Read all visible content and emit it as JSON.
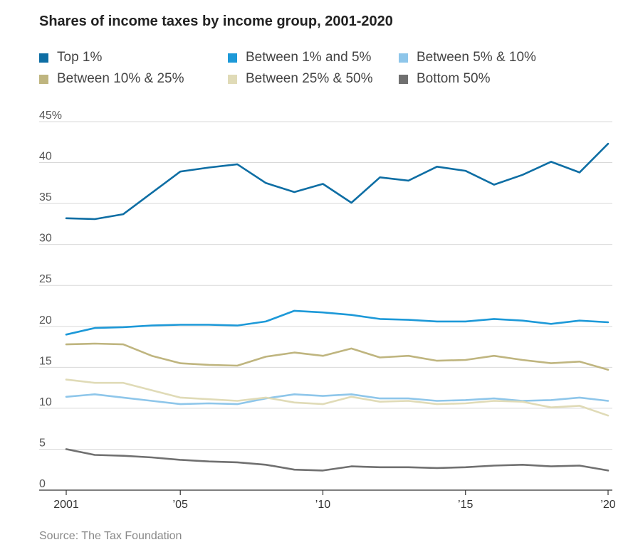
{
  "title": "Shares of income taxes by income group, 2001-2020",
  "source": "Source: The Tax Foundation",
  "chart_data": {
    "type": "line",
    "title": "Shares of income taxes by income group, 2001-2020",
    "xlabel": "",
    "ylabel": "",
    "x": [
      2001,
      2002,
      2003,
      2004,
      2005,
      2006,
      2007,
      2008,
      2009,
      2010,
      2011,
      2012,
      2013,
      2014,
      2015,
      2016,
      2017,
      2018,
      2019,
      2020
    ],
    "xlim": [
      2001,
      2020
    ],
    "ylim": [
      0,
      45
    ],
    "y_ticks": [
      0,
      5,
      10,
      15,
      20,
      25,
      30,
      35,
      40,
      45
    ],
    "y_tick_labels": [
      "0",
      "5",
      "10",
      "15",
      "20",
      "25",
      "30",
      "35",
      "40",
      "45%"
    ],
    "x_ticks": [
      2001,
      2005,
      2010,
      2015,
      2020
    ],
    "x_tick_labels": [
      "2001",
      "’05",
      "’10",
      "’15",
      "’20"
    ],
    "grid": true,
    "legend_position": "top",
    "series": [
      {
        "name": "Top 1%",
        "color": "#0e6ea4",
        "values": [
          33.2,
          33.1,
          33.7,
          36.3,
          38.9,
          39.4,
          39.8,
          37.5,
          36.4,
          37.4,
          35.1,
          38.2,
          37.8,
          39.5,
          39.0,
          37.3,
          38.5,
          40.1,
          38.8,
          42.3
        ]
      },
      {
        "name": "Between 1% and 5%",
        "color": "#1d99d8",
        "values": [
          19.0,
          19.8,
          19.9,
          20.1,
          20.2,
          20.2,
          20.1,
          20.6,
          21.9,
          21.7,
          21.4,
          20.9,
          20.8,
          20.6,
          20.6,
          20.9,
          20.7,
          20.3,
          20.7,
          20.5
        ]
      },
      {
        "name": "Between 5% & 10%",
        "color": "#8ec6ea",
        "values": [
          11.4,
          11.7,
          11.3,
          10.9,
          10.5,
          10.6,
          10.5,
          11.2,
          11.7,
          11.5,
          11.7,
          11.2,
          11.2,
          10.9,
          11.0,
          11.2,
          10.9,
          11.0,
          11.3,
          10.9
        ]
      },
      {
        "name": "Between 10% & 25%",
        "color": "#bfb57f",
        "values": [
          17.8,
          17.9,
          17.8,
          16.4,
          15.5,
          15.3,
          15.2,
          16.3,
          16.8,
          16.4,
          17.3,
          16.2,
          16.4,
          15.8,
          15.9,
          16.4,
          15.9,
          15.5,
          15.7,
          14.7
        ]
      },
      {
        "name": "Between 25% & 50%",
        "color": "#e0dbb7",
        "values": [
          13.5,
          13.1,
          13.1,
          12.2,
          11.3,
          11.1,
          10.9,
          11.3,
          10.7,
          10.5,
          11.4,
          10.8,
          10.9,
          10.5,
          10.6,
          10.9,
          10.8,
          10.1,
          10.3,
          9.1
        ]
      },
      {
        "name": "Bottom 50%",
        "color": "#707070",
        "values": [
          5.0,
          4.3,
          4.2,
          4.0,
          3.7,
          3.5,
          3.4,
          3.1,
          2.5,
          2.4,
          2.9,
          2.8,
          2.8,
          2.7,
          2.8,
          3.0,
          3.1,
          2.9,
          3.0,
          2.4
        ]
      }
    ]
  }
}
